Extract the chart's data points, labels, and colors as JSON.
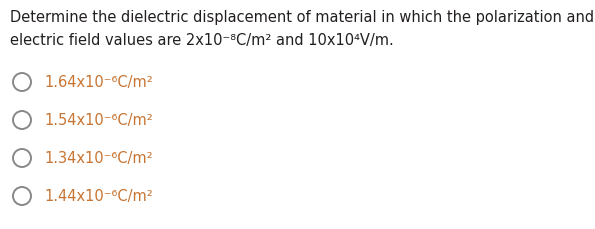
{
  "background_color": "#ffffff",
  "question_color": "#231f20",
  "option_color": "#c87533",
  "circle_color": "#888888",
  "question_line1": "Determine the dielectric displacement of material in which the polarization and",
  "question_line2": "electric field values are 2x10⁻⁸C/m² and 10x10⁴V/m.",
  "options": [
    "1.64x10⁻⁶C/m²",
    "1.54x10⁻⁶C/m²",
    "1.34x10⁻⁶C/m²",
    "1.44x10⁻⁶C/m²"
  ],
  "question_fontsize": 10.5,
  "option_fontsize": 10.5,
  "fig_width": 5.95,
  "fig_height": 2.3,
  "dpi": 100
}
